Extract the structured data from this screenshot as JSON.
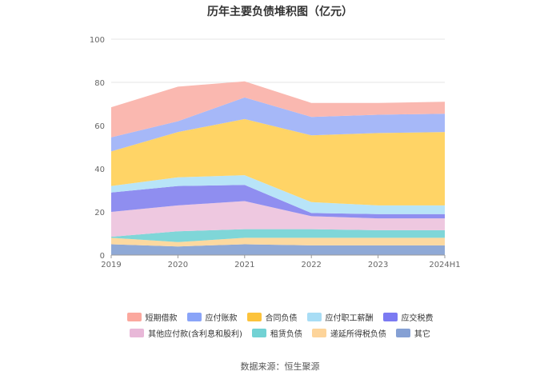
{
  "source": "数据来源：恒生聚源",
  "chart_data": {
    "type": "area",
    "stacked": true,
    "title": "历年主要负债堆积图（亿元）",
    "xlabel": "",
    "ylabel": "",
    "ylim": [
      0,
      100
    ],
    "yticks": [
      "0",
      "20",
      "40",
      "60",
      "80",
      "100"
    ],
    "categories": [
      "2019",
      "2020",
      "2021",
      "2022",
      "2023",
      "2024H1"
    ],
    "legend_position": "bottom",
    "series": [
      {
        "name": "其它",
        "color": "#8fa9d6",
        "values": [
          5,
          4,
          5,
          4.5,
          4.5,
          4.5
        ]
      },
      {
        "name": "递延所得税负债",
        "color": "#fcd9a0",
        "values": [
          3,
          2,
          3,
          3.5,
          3.5,
          3.5
        ]
      },
      {
        "name": "租赁负债",
        "color": "#7fd6d8",
        "values": [
          0.5,
          5,
          4,
          4,
          3.5,
          3.5
        ]
      },
      {
        "name": "其他应付款(含利息和股利)",
        "color": "#eec8e0",
        "values": [
          11.5,
          12,
          13,
          6,
          5.5,
          5.5
        ]
      },
      {
        "name": "应交税费",
        "color": "#8f8ef0",
        "values": [
          9,
          9,
          7.5,
          1.5,
          2,
          2
        ]
      },
      {
        "name": "应付职工薪酬",
        "color": "#b8e4f8",
        "values": [
          3,
          4,
          4.5,
          5,
          4,
          4
        ]
      },
      {
        "name": "合同负债",
        "color": "#ffd466",
        "values": [
          16,
          21,
          26,
          31,
          33.5,
          34
        ]
      },
      {
        "name": "应付账款",
        "color": "#a6b8f8",
        "values": [
          6.5,
          5,
          10,
          8.5,
          8.5,
          8.5
        ]
      },
      {
        "name": "短期借款",
        "color": "#fab8b0",
        "values": [
          14,
          16,
          7.5,
          6.5,
          5.5,
          5.5
        ]
      }
    ],
    "legend_rows": [
      [
        {
          "name": "短期借款",
          "color": "#fba89e"
        },
        {
          "name": "应付账款",
          "color": "#8aa4f8"
        },
        {
          "name": "合同负债",
          "color": "#fcc33c"
        },
        {
          "name": "应付职工薪酬",
          "color": "#a8ddf5"
        },
        {
          "name": "应交税费",
          "color": "#7b7af2"
        }
      ],
      [
        {
          "name": "其他应付款(含利息和股利)",
          "color": "#e8b8d8"
        },
        {
          "name": "租赁负债",
          "color": "#72d2d4"
        },
        {
          "name": "递延所得税负债",
          "color": "#fdd49a"
        },
        {
          "name": "其它",
          "color": "#85a0d4"
        }
      ]
    ]
  }
}
